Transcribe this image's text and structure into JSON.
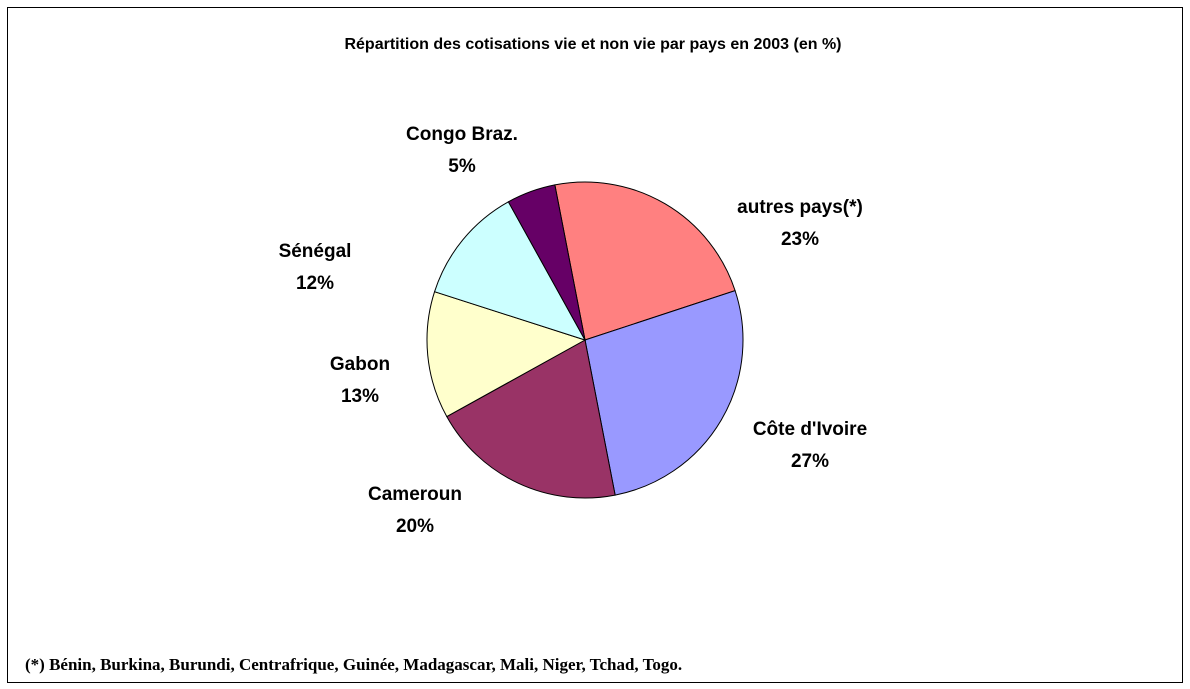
{
  "chart_data": {
    "type": "pie",
    "title": "Répartition des cotisations vie et non vie par pays en 2003 (en %)",
    "categories": [
      "autres pays(*)",
      "Côte d'Ivoire",
      "Cameroun",
      "Gabon",
      "Sénégal",
      "Congo Braz."
    ],
    "values": [
      23,
      27,
      20,
      13,
      12,
      5
    ],
    "value_labels": [
      "23%",
      "27%",
      "20%",
      "13%",
      "12%",
      "5%"
    ],
    "colors": [
      "#ff8080",
      "#9999ff",
      "#993366",
      "#ffffcc",
      "#ccffff",
      "#660066"
    ],
    "note": "(*) Bénin, Burkina, Burundi, Centrafrique, Guinée, Madagascar, Mali, Niger, Tchad, Togo."
  }
}
